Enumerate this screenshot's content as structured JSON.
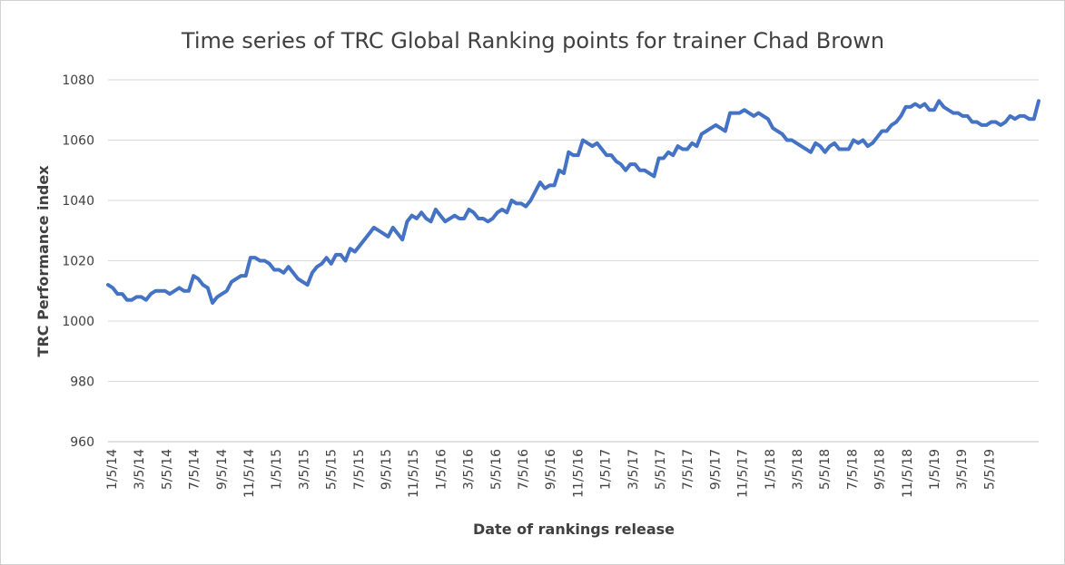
{
  "chart_data": {
    "type": "line",
    "title": "Time series of TRC Global Ranking points for trainer Chad Brown",
    "xlabel": "Date of rankings release",
    "ylabel": "TRC Performance index",
    "ylim": [
      960,
      1080
    ],
    "yticks": [
      960,
      980,
      1000,
      1020,
      1040,
      1060,
      1080
    ],
    "x_tick_labels": [
      "1/5/14",
      "3/5/14",
      "5/5/14",
      "7/5/14",
      "9/5/14",
      "11/5/14",
      "1/5/15",
      "3/5/15",
      "5/5/15",
      "7/5/15",
      "9/5/15",
      "11/5/15",
      "1/5/16",
      "3/5/16",
      "5/5/16",
      "7/5/16",
      "9/5/16",
      "11/5/16",
      "1/5/17",
      "3/5/17",
      "5/5/17",
      "7/5/17",
      "9/5/17",
      "11/5/17",
      "1/5/18",
      "3/5/18",
      "5/5/18",
      "7/5/18",
      "9/5/18",
      "11/5/18",
      "1/5/19",
      "3/5/19",
      "5/5/19"
    ],
    "grid": true,
    "line_color": "#4472c4",
    "series": [
      {
        "values": [
          1012,
          1011,
          1009,
          1009,
          1007,
          1007,
          1008,
          1008,
          1007,
          1009,
          1010,
          1010,
          1010,
          1009,
          1010,
          1011,
          1010,
          1010,
          1015,
          1014,
          1012,
          1011,
          1006,
          1008,
          1009,
          1010,
          1013,
          1014,
          1015,
          1015,
          1021,
          1021,
          1020,
          1020,
          1019,
          1017,
          1017,
          1016,
          1018,
          1016,
          1014,
          1013,
          1012,
          1016,
          1018,
          1019,
          1021,
          1019,
          1022,
          1022,
          1020,
          1024,
          1023,
          1025,
          1027,
          1029,
          1031,
          1030,
          1029,
          1028,
          1031,
          1029,
          1027,
          1033,
          1035,
          1034,
          1036,
          1034,
          1033,
          1037,
          1035,
          1033,
          1034,
          1035,
          1034,
          1034,
          1037,
          1036,
          1034,
          1034,
          1033,
          1034,
          1036,
          1037,
          1036,
          1040,
          1039,
          1039,
          1038,
          1040,
          1043,
          1046,
          1044,
          1045,
          1045,
          1050,
          1049,
          1056,
          1055,
          1055,
          1060,
          1059,
          1058,
          1059,
          1057,
          1055,
          1055,
          1053,
          1052,
          1050,
          1052,
          1052,
          1050,
          1050,
          1049,
          1048,
          1054,
          1054,
          1056,
          1055,
          1058,
          1057,
          1057,
          1059,
          1058,
          1062,
          1063,
          1064,
          1065,
          1064,
          1063,
          1069,
          1069,
          1069,
          1070,
          1069,
          1068,
          1069,
          1068,
          1067,
          1064,
          1063,
          1062,
          1060,
          1060,
          1059,
          1058,
          1057,
          1056,
          1059,
          1058,
          1056,
          1058,
          1059,
          1057,
          1057,
          1057,
          1060,
          1059,
          1060,
          1058,
          1059,
          1061,
          1063,
          1063,
          1065,
          1066,
          1068,
          1071,
          1071,
          1072,
          1071,
          1072,
          1070,
          1070,
          1073,
          1071,
          1070,
          1069,
          1069,
          1068,
          1068,
          1066,
          1066,
          1065,
          1065,
          1066,
          1066,
          1065,
          1066,
          1068,
          1067,
          1068,
          1068,
          1067,
          1067,
          1073
        ]
      }
    ]
  }
}
